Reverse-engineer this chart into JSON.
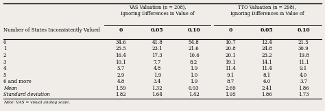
{
  "title_vas": "VAS Valuation (n = 208),\nIgnoring Differences in Value of",
  "title_tto": "TTO Valuation (n = 298),\nIgnoring Differences in Value of",
  "col_headers": [
    "0",
    "0.05",
    "0.10",
    "0",
    "0.05",
    "0.10"
  ],
  "row_labels": [
    "0",
    "1",
    "2",
    "3",
    "4",
    "5",
    "6 and more",
    "Mean",
    "Standard deviation"
  ],
  "vas_data": [
    [
      "34.6",
      "41.8",
      "54.8"
    ],
    [
      "25.5",
      "23.1",
      "21.6"
    ],
    [
      "16.4",
      "17.3",
      "10.6"
    ],
    [
      "10.1",
      "7.7",
      "8.2"
    ],
    [
      "5.7",
      "4.8",
      "1.9"
    ],
    [
      "2.9",
      "1.9",
      "1.0"
    ],
    [
      "4.8",
      "3.4",
      "1.9"
    ],
    [
      "1.59",
      "1.32",
      "0.93"
    ],
    [
      "1.82",
      "1.64",
      "1.42"
    ]
  ],
  "tto_data": [
    [
      "10.7",
      "12.4",
      "21.5"
    ],
    [
      "20.8",
      "24.8",
      "30.9"
    ],
    [
      "20.1",
      "23.2",
      "19.8"
    ],
    [
      "19.1",
      "14.1",
      "11.1"
    ],
    [
      "11.4",
      "11.4",
      "9.1"
    ],
    [
      "9.1",
      "8.1",
      "4.0"
    ],
    [
      "8.7",
      "6.0",
      "3.7"
    ],
    [
      "2.69",
      "2.41",
      "1.86"
    ],
    [
      "1.95",
      "1.86",
      "1.73"
    ]
  ],
  "row_header_label": "Number of States Inconsistently Valued",
  "note": "Note: VAS = visual analog scale.",
  "bg_color": "#f0ede8"
}
